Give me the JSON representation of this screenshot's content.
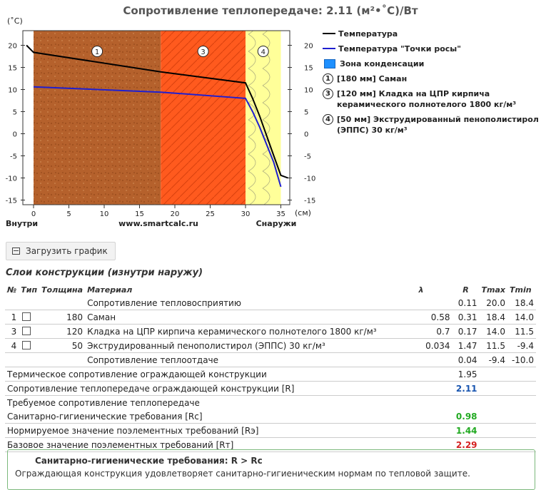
{
  "title": "Сопротивление теплопередаче: 2.11 (м²•˚С)/Вт",
  "chart": {
    "y_unit": "(˚С)",
    "x_unit": "(см)",
    "y_ticks": [
      "20",
      "15",
      "10",
      "5",
      "0",
      "-5",
      "-10",
      "-15"
    ],
    "x_ticks": [
      "0",
      "5",
      "10",
      "15",
      "20",
      "25",
      "30",
      "35"
    ],
    "label_inside": "Внутри",
    "label_site": "www.smartcalc.ru",
    "label_outside": "Снаружи",
    "layer_markers": [
      "1",
      "3",
      "4"
    ]
  },
  "chart_data": {
    "type": "line",
    "xlabel": "(см)",
    "ylabel": "(˚С)",
    "xlim": [
      -1,
      36
    ],
    "ylim": [
      -15,
      23
    ],
    "layers": [
      {
        "num": "1",
        "from": 0,
        "to": 18,
        "color": "#b5612c"
      },
      {
        "num": "3",
        "from": 18,
        "to": 30,
        "color": "#ff5a1e"
      },
      {
        "num": "4",
        "from": 30,
        "to": 35,
        "color": "#ffff99"
      }
    ],
    "series": [
      {
        "name": "Температура",
        "color": "#000000",
        "x": [
          -1,
          0,
          18,
          30,
          31,
          32,
          33,
          34,
          35,
          36
        ],
        "y": [
          20,
          18.4,
          14.0,
          11.5,
          8.0,
          4.0,
          -0.5,
          -5.0,
          -9.4,
          -10.0
        ]
      },
      {
        "name": "Температура \"Точки росы\"",
        "color": "#1f1fd0",
        "x": [
          0,
          18,
          30,
          31,
          32,
          33,
          34,
          35
        ],
        "y": [
          10.6,
          9.4,
          8.0,
          5.0,
          1.5,
          -2.5,
          -6.5,
          -12.0
        ]
      }
    ]
  },
  "legend": {
    "temperature": "Температура",
    "dew": "Температура \"Точки росы\"",
    "condensation": "Зона конденсации",
    "layers": [
      {
        "num": "1",
        "text": "[180 мм] Саман"
      },
      {
        "num": "3",
        "text": "[120 мм] Кладка на ЦПР кирпича керамического полнотелого 1800 кг/м³"
      },
      {
        "num": "4",
        "text": "[50 мм] Экструдированный пенополистирол (ЭППС) 30 кг/м³"
      }
    ]
  },
  "load_button": "Загрузить график",
  "section_title": "Слои конструкции (изнутри наружу)",
  "table": {
    "headers": {
      "n": "№",
      "type": "Тип",
      "thickness": "Толщина",
      "material": "Материал",
      "lambda": "λ",
      "r": "R",
      "tmax": "Tmax",
      "tmin": "Tmin"
    },
    "perception": {
      "label": "Сопротивление тепловосприятию",
      "r": "0.11",
      "tmax": "20.0",
      "tmin": "18.4"
    },
    "rows": [
      {
        "num": "1",
        "thickness": "180",
        "material": "Саман",
        "lambda": "0.58",
        "r": "0.31",
        "tmax": "18.4",
        "tmin": "14.0"
      },
      {
        "num": "3",
        "thickness": "120",
        "material": "Кладка на ЦПР кирпича керамического полнотелого 1800 кг/м³",
        "lambda": "0.7",
        "r": "0.17",
        "tmax": "14.0",
        "tmin": "11.5"
      },
      {
        "num": "4",
        "thickness": "50",
        "material": "Экструдированный пенополистирол (ЭППС) 30 кг/м³",
        "lambda": "0.034",
        "r": "1.47",
        "tmax": "11.5",
        "tmin": "-9.4"
      }
    ],
    "transfer": {
      "label": "Сопротивление теплоотдаче",
      "r": "0.04",
      "tmax": "-9.4",
      "tmin": "-10.0"
    },
    "thermal": {
      "label": "Термическое сопротивление ограждающей конструкции",
      "r": "1.95"
    },
    "total": {
      "label": "Сопротивление теплопередаче ограждающей конструкции [R]",
      "r": "2.11"
    },
    "required_title": "Требуемое сопротивление теплопередаче",
    "sanitary": {
      "label": "Санитарно-гигиенические требования [Rc]",
      "r": "0.98"
    },
    "normative": {
      "label": "Нормируемое значение поэлементных требований [Rэ]",
      "r": "1.44"
    },
    "base": {
      "label": "Базовое значение поэлементных требований [Rт]",
      "r": "2.29"
    }
  },
  "result": {
    "heading": "Санитарно-гигиенические требования: R > Rc",
    "text": "Ограждающая конструкция удовлетворяет санитарно-гигиеническим нормам по тепловой защите."
  }
}
